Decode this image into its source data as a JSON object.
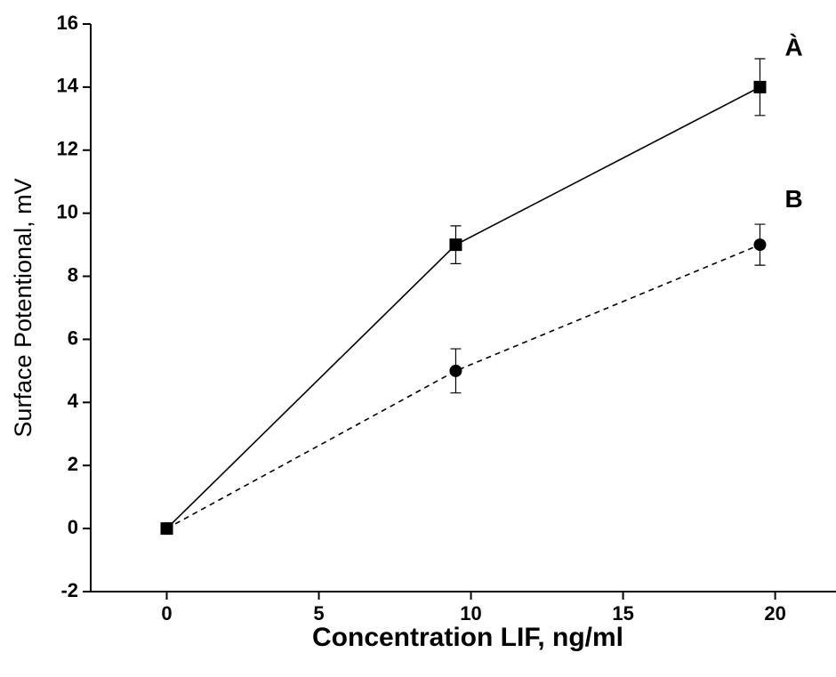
{
  "chart_data": {
    "type": "line",
    "xlabel": "Concentration LIF, ng/ml",
    "ylabel": "Surface Potentional, mV",
    "x": [
      0,
      9.5,
      19.5
    ],
    "series": [
      {
        "name": "À",
        "color": "#000000",
        "marker": "square",
        "dash": false,
        "values": [
          0,
          9,
          14
        ],
        "errors": [
          0,
          0.6,
          0.9
        ]
      },
      {
        "name": "B",
        "color": "#000000",
        "marker": "circle",
        "dash": true,
        "values": [
          0,
          5,
          9
        ],
        "errors": [
          0,
          0.7,
          0.65
        ]
      }
    ],
    "xlim": [
      -2.5,
      22
    ],
    "xticks": [
      0,
      5,
      10,
      15,
      20
    ],
    "ylim": [
      -2,
      16
    ],
    "yticks": [
      -2,
      0,
      2,
      4,
      6,
      8,
      10,
      12,
      14,
      16
    ],
    "grid": false
  }
}
